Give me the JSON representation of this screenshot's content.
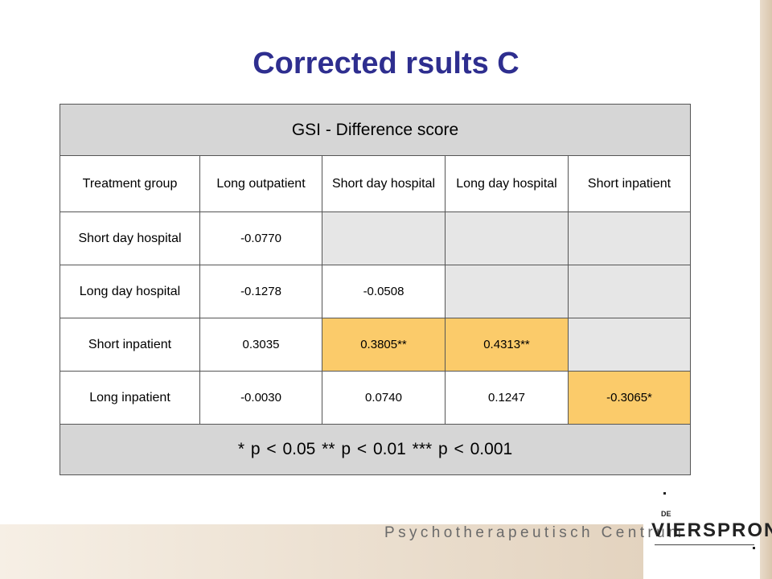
{
  "slide": {
    "title": "Corrected rsults C"
  },
  "table": {
    "header": "GSI - Difference score",
    "columns": [
      "Treatment group",
      "Long outpatient",
      "Short day hospital",
      "Long day hospital",
      "Short inpatient"
    ],
    "rows": [
      {
        "label": "Short day hospital",
        "cells": [
          "-0.0770",
          "",
          "",
          ""
        ]
      },
      {
        "label": "Long day hospital",
        "cells": [
          "-0.1278",
          "-0.0508",
          "",
          ""
        ]
      },
      {
        "label": "Short inpatient",
        "cells": [
          "0.3035",
          "0.3805**",
          "0.4313**",
          ""
        ]
      },
      {
        "label": "Long inpatient",
        "cells": [
          "-0.0030",
          "0.0740",
          "0.1247",
          "-0.3065*"
        ]
      }
    ],
    "footnote": "* p < 0.05  ** p < 0.01  *** p < 0.001"
  },
  "footer": {
    "centre_name": "Psychotherapeutisch Centrum",
    "logo_prefix": "DE",
    "logo_name": "VIERSPRONG"
  },
  "colors": {
    "title": "#2e2e8f",
    "header_fill": "#d6d6d6",
    "empty_cell": "#e6e6e6",
    "significant_cell": "#fbcb6a"
  }
}
